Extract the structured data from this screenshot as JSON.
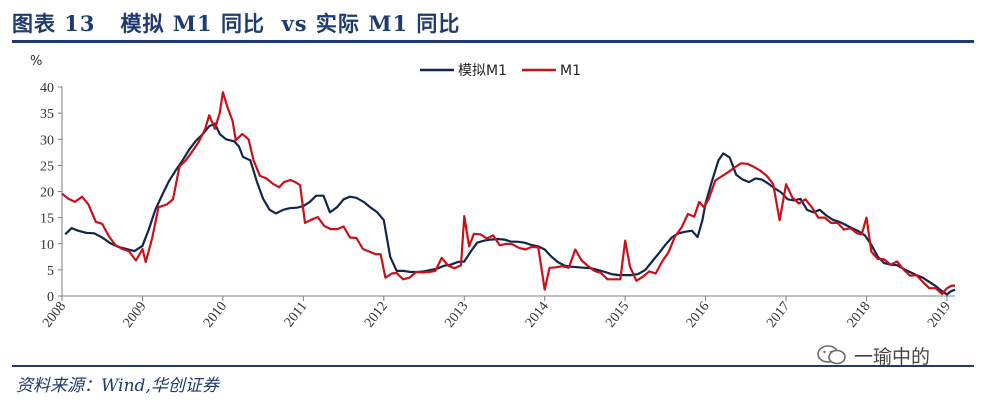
{
  "header": {
    "title": "图表 13   模拟 M1 同比  vs 实际 M1 同比"
  },
  "source": {
    "text": "资料来源：Wind,华创证券"
  },
  "watermark": {
    "text": "一瑜中的",
    "icon": "wechat-icon"
  },
  "colors": {
    "navy": "#1f3a6e",
    "series_sim": "#10264f",
    "series_m1": "#c8121a"
  },
  "chart_data": {
    "type": "line",
    "ylabel": "%",
    "ylim": [
      0,
      40
    ],
    "yticks": [
      0,
      5,
      10,
      15,
      20,
      25,
      30,
      35,
      40
    ],
    "xlim": [
      2008,
      2019.1
    ],
    "xticks": [
      "2008",
      "2009",
      "2010",
      "2011",
      "2012",
      "2013",
      "2014",
      "2015",
      "2016",
      "2017",
      "2018",
      "2019"
    ],
    "grid": false,
    "legend_position": "top-center",
    "series": [
      {
        "name": "模拟M1",
        "color": "#10264f",
        "points": [
          [
            2008.04,
            11.8
          ],
          [
            2008.12,
            13.0
          ],
          [
            2008.2,
            12.5
          ],
          [
            2008.3,
            12.1
          ],
          [
            2008.4,
            12.0
          ],
          [
            2008.5,
            11.2
          ],
          [
            2008.6,
            10.1
          ],
          [
            2008.7,
            9.4
          ],
          [
            2008.8,
            9.0
          ],
          [
            2008.9,
            8.6
          ],
          [
            2009.0,
            9.6
          ],
          [
            2009.08,
            12.8
          ],
          [
            2009.16,
            16.5
          ],
          [
            2009.25,
            19.5
          ],
          [
            2009.33,
            22.0
          ],
          [
            2009.42,
            24.2
          ],
          [
            2009.5,
            26.0
          ],
          [
            2009.58,
            28.0
          ],
          [
            2009.66,
            29.6
          ],
          [
            2009.75,
            31.0
          ],
          [
            2009.83,
            32.5
          ],
          [
            2009.9,
            33.0
          ],
          [
            2009.96,
            31.0
          ],
          [
            2010.04,
            30.0
          ],
          [
            2010.14,
            29.6
          ],
          [
            2010.2,
            28.6
          ],
          [
            2010.25,
            26.6
          ],
          [
            2010.34,
            26.0
          ],
          [
            2010.42,
            22.0
          ],
          [
            2010.5,
            18.6
          ],
          [
            2010.58,
            16.5
          ],
          [
            2010.66,
            15.8
          ],
          [
            2010.75,
            16.5
          ],
          [
            2010.83,
            16.8
          ],
          [
            2010.92,
            16.9
          ],
          [
            2011.0,
            17.2
          ],
          [
            2011.08,
            18.0
          ],
          [
            2011.16,
            19.2
          ],
          [
            2011.25,
            19.2
          ],
          [
            2011.33,
            16.0
          ],
          [
            2011.42,
            17.0
          ],
          [
            2011.5,
            18.5
          ],
          [
            2011.58,
            19.0
          ],
          [
            2011.66,
            18.8
          ],
          [
            2011.75,
            18.0
          ],
          [
            2011.83,
            17.0
          ],
          [
            2011.92,
            16.0
          ],
          [
            2012.0,
            14.5
          ],
          [
            2012.08,
            7.5
          ],
          [
            2012.16,
            4.8
          ],
          [
            2012.25,
            4.8
          ],
          [
            2012.33,
            4.6
          ],
          [
            2012.42,
            4.6
          ],
          [
            2012.5,
            4.7
          ],
          [
            2012.58,
            5.0
          ],
          [
            2012.66,
            5.2
          ],
          [
            2012.75,
            5.8
          ],
          [
            2012.83,
            6.0
          ],
          [
            2012.92,
            6.5
          ],
          [
            2013.0,
            6.6
          ],
          [
            2013.08,
            8.5
          ],
          [
            2013.16,
            10.2
          ],
          [
            2013.25,
            10.6
          ],
          [
            2013.33,
            10.8
          ],
          [
            2013.42,
            10.9
          ],
          [
            2013.5,
            10.8
          ],
          [
            2013.58,
            10.4
          ],
          [
            2013.66,
            10.4
          ],
          [
            2013.75,
            10.2
          ],
          [
            2013.83,
            9.8
          ],
          [
            2013.92,
            9.5
          ],
          [
            2014.0,
            8.9
          ],
          [
            2014.08,
            7.6
          ],
          [
            2014.16,
            6.5
          ],
          [
            2014.25,
            5.8
          ],
          [
            2014.33,
            5.6
          ],
          [
            2014.42,
            5.5
          ],
          [
            2014.5,
            5.4
          ],
          [
            2014.58,
            5.3
          ],
          [
            2014.66,
            5.0
          ],
          [
            2014.75,
            4.6
          ],
          [
            2014.83,
            4.2
          ],
          [
            2014.92,
            4.0
          ],
          [
            2015.0,
            4.0
          ],
          [
            2015.08,
            4.0
          ],
          [
            2015.16,
            4.2
          ],
          [
            2015.25,
            5.0
          ],
          [
            2015.33,
            6.5
          ],
          [
            2015.42,
            8.2
          ],
          [
            2015.5,
            9.8
          ],
          [
            2015.58,
            11.2
          ],
          [
            2015.66,
            12.0
          ],
          [
            2015.75,
            12.3
          ],
          [
            2015.83,
            12.5
          ],
          [
            2015.9,
            11.3
          ],
          [
            2015.96,
            14.5
          ],
          [
            2016.0,
            17.8
          ],
          [
            2016.08,
            22.0
          ],
          [
            2016.16,
            26.0
          ],
          [
            2016.22,
            27.3
          ],
          [
            2016.3,
            26.5
          ],
          [
            2016.38,
            23.2
          ],
          [
            2016.46,
            22.3
          ],
          [
            2016.54,
            21.8
          ],
          [
            2016.62,
            22.5
          ],
          [
            2016.7,
            22.3
          ],
          [
            2016.78,
            21.5
          ],
          [
            2016.86,
            20.6
          ],
          [
            2016.94,
            19.8
          ],
          [
            2017.02,
            18.5
          ],
          [
            2017.1,
            18.3
          ],
          [
            2017.18,
            18.6
          ],
          [
            2017.26,
            16.5
          ],
          [
            2017.34,
            16.0
          ],
          [
            2017.42,
            16.5
          ],
          [
            2017.5,
            15.4
          ],
          [
            2017.58,
            14.6
          ],
          [
            2017.66,
            14.2
          ],
          [
            2017.74,
            13.6
          ],
          [
            2017.82,
            13.0
          ],
          [
            2017.9,
            12.4
          ],
          [
            2017.98,
            11.6
          ],
          [
            2018.06,
            9.8
          ],
          [
            2018.14,
            7.5
          ],
          [
            2018.22,
            6.3
          ],
          [
            2018.3,
            6.0
          ],
          [
            2018.38,
            5.9
          ],
          [
            2018.46,
            5.2
          ],
          [
            2018.54,
            4.6
          ],
          [
            2018.62,
            4.0
          ],
          [
            2018.7,
            3.5
          ],
          [
            2018.78,
            2.7
          ],
          [
            2018.86,
            1.9
          ],
          [
            2018.94,
            0.9
          ],
          [
            2019.0,
            0.3
          ],
          [
            2019.05,
            0.9
          ],
          [
            2019.1,
            1.2
          ]
        ]
      },
      {
        "name": "M1",
        "color": "#c8121a",
        "points": [
          [
            2008.0,
            19.6
          ],
          [
            2008.08,
            18.6
          ],
          [
            2008.16,
            18.0
          ],
          [
            2008.25,
            19.0
          ],
          [
            2008.33,
            17.5
          ],
          [
            2008.42,
            14.2
          ],
          [
            2008.5,
            13.8
          ],
          [
            2008.58,
            11.5
          ],
          [
            2008.66,
            9.8
          ],
          [
            2008.75,
            9.0
          ],
          [
            2008.83,
            8.6
          ],
          [
            2008.92,
            6.8
          ],
          [
            2009.0,
            9.0
          ],
          [
            2009.04,
            6.5
          ],
          [
            2009.12,
            11.0
          ],
          [
            2009.2,
            17.0
          ],
          [
            2009.3,
            17.5
          ],
          [
            2009.38,
            18.5
          ],
          [
            2009.46,
            24.8
          ],
          [
            2009.54,
            26.0
          ],
          [
            2009.62,
            27.7
          ],
          [
            2009.7,
            29.5
          ],
          [
            2009.78,
            32.0
          ],
          [
            2009.83,
            34.6
          ],
          [
            2009.9,
            32.0
          ],
          [
            2009.96,
            35.0
          ],
          [
            2010.0,
            39.0
          ],
          [
            2010.06,
            36.0
          ],
          [
            2010.12,
            33.5
          ],
          [
            2010.16,
            29.8
          ],
          [
            2010.24,
            31.0
          ],
          [
            2010.32,
            30.0
          ],
          [
            2010.38,
            26.0
          ],
          [
            2010.46,
            23.0
          ],
          [
            2010.54,
            22.5
          ],
          [
            2010.62,
            21.5
          ],
          [
            2010.7,
            20.8
          ],
          [
            2010.76,
            21.8
          ],
          [
            2010.84,
            22.2
          ],
          [
            2010.9,
            21.8
          ],
          [
            2010.96,
            21.2
          ],
          [
            2011.02,
            14.0
          ],
          [
            2011.1,
            14.6
          ],
          [
            2011.18,
            15.1
          ],
          [
            2011.26,
            13.4
          ],
          [
            2011.34,
            12.8
          ],
          [
            2011.42,
            12.8
          ],
          [
            2011.5,
            13.3
          ],
          [
            2011.58,
            11.2
          ],
          [
            2011.66,
            11.1
          ],
          [
            2011.74,
            9.0
          ],
          [
            2011.82,
            8.5
          ],
          [
            2011.9,
            8.0
          ],
          [
            2011.96,
            8.0
          ],
          [
            2012.02,
            3.5
          ],
          [
            2012.1,
            4.3
          ],
          [
            2012.16,
            4.4
          ],
          [
            2012.24,
            3.2
          ],
          [
            2012.32,
            3.5
          ],
          [
            2012.4,
            4.6
          ],
          [
            2012.48,
            4.5
          ],
          [
            2012.56,
            4.6
          ],
          [
            2012.64,
            4.8
          ],
          [
            2012.72,
            7.3
          ],
          [
            2012.8,
            5.8
          ],
          [
            2012.88,
            5.3
          ],
          [
            2012.96,
            5.9
          ],
          [
            2013.0,
            15.3
          ],
          [
            2013.06,
            9.5
          ],
          [
            2013.12,
            11.9
          ],
          [
            2013.2,
            11.8
          ],
          [
            2013.28,
            11.0
          ],
          [
            2013.36,
            11.6
          ],
          [
            2013.44,
            9.7
          ],
          [
            2013.52,
            10.0
          ],
          [
            2013.6,
            9.9
          ],
          [
            2013.68,
            9.2
          ],
          [
            2013.76,
            8.9
          ],
          [
            2013.84,
            9.4
          ],
          [
            2013.92,
            9.3
          ],
          [
            2014.0,
            1.2
          ],
          [
            2014.06,
            5.4
          ],
          [
            2014.14,
            5.5
          ],
          [
            2014.22,
            5.7
          ],
          [
            2014.3,
            5.4
          ],
          [
            2014.38,
            8.9
          ],
          [
            2014.46,
            6.8
          ],
          [
            2014.54,
            5.7
          ],
          [
            2014.62,
            4.8
          ],
          [
            2014.7,
            4.4
          ],
          [
            2014.78,
            3.2
          ],
          [
            2014.86,
            3.2
          ],
          [
            2014.94,
            3.2
          ],
          [
            2015.0,
            10.6
          ],
          [
            2015.06,
            5.6
          ],
          [
            2015.14,
            2.9
          ],
          [
            2015.22,
            3.7
          ],
          [
            2015.3,
            4.7
          ],
          [
            2015.38,
            4.3
          ],
          [
            2015.46,
            6.6
          ],
          [
            2015.54,
            8.4
          ],
          [
            2015.62,
            11.4
          ],
          [
            2015.7,
            13.1
          ],
          [
            2015.78,
            15.7
          ],
          [
            2015.86,
            15.2
          ],
          [
            2015.92,
            18.0
          ],
          [
            2015.98,
            17.0
          ],
          [
            2016.04,
            18.6
          ],
          [
            2016.12,
            22.1
          ],
          [
            2016.2,
            22.9
          ],
          [
            2016.28,
            23.7
          ],
          [
            2016.36,
            24.6
          ],
          [
            2016.44,
            25.4
          ],
          [
            2016.52,
            25.3
          ],
          [
            2016.6,
            24.7
          ],
          [
            2016.68,
            24.0
          ],
          [
            2016.76,
            23.0
          ],
          [
            2016.84,
            21.4
          ],
          [
            2016.92,
            14.5
          ],
          [
            2017.0,
            21.4
          ],
          [
            2017.08,
            18.8
          ],
          [
            2017.16,
            17.7
          ],
          [
            2017.24,
            18.5
          ],
          [
            2017.32,
            17.0
          ],
          [
            2017.4,
            15.0
          ],
          [
            2017.48,
            15.0
          ],
          [
            2017.56,
            14.0
          ],
          [
            2017.64,
            14.0
          ],
          [
            2017.72,
            12.7
          ],
          [
            2017.8,
            13.0
          ],
          [
            2017.88,
            12.0
          ],
          [
            2017.94,
            11.8
          ],
          [
            2018.0,
            15.0
          ],
          [
            2018.06,
            8.5
          ],
          [
            2018.14,
            7.1
          ],
          [
            2018.22,
            7.0
          ],
          [
            2018.3,
            6.0
          ],
          [
            2018.38,
            6.6
          ],
          [
            2018.46,
            5.1
          ],
          [
            2018.54,
            3.9
          ],
          [
            2018.62,
            4.0
          ],
          [
            2018.7,
            2.7
          ],
          [
            2018.78,
            1.5
          ],
          [
            2018.86,
            1.5
          ],
          [
            2018.94,
            0.4
          ],
          [
            2019.0,
            1.5
          ],
          [
            2019.06,
            2.0
          ],
          [
            2019.1,
            2.0
          ]
        ]
      }
    ]
  }
}
